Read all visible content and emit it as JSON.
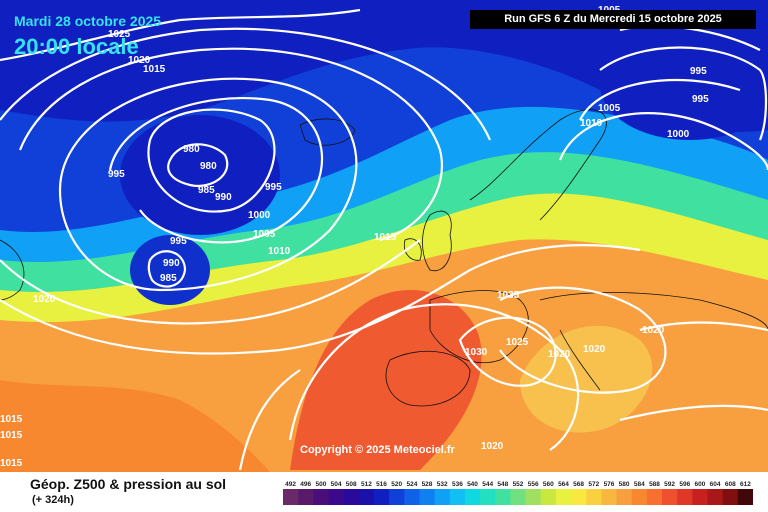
{
  "header": {
    "date": "Mardi 28 octobre 2025",
    "time": "20:00 locale",
    "run": "Run GFS 6 Z du Mercredi 15 octobre 2025",
    "copyright": "Copyright © 2025 Meteociel.fr"
  },
  "footer": {
    "title": "Géop. Z500 & pression au sol",
    "subtitle": "(+ 324h)"
  },
  "isobar_labels": [
    "1025",
    "1020",
    "1015",
    "995",
    "980",
    "980",
    "985",
    "990",
    "995",
    "1000",
    "1005",
    "1010",
    "995",
    "990",
    "985",
    "1020",
    "1015",
    "1015",
    "1015",
    "1035",
    "1025",
    "1030",
    "1020",
    "1020",
    "1020",
    "1020",
    "1005",
    "1010",
    "1000",
    "995",
    "995",
    "1005",
    "1015"
  ],
  "legend": {
    "values": [
      "492",
      "496",
      "500",
      "504",
      "508",
      "512",
      "516",
      "520",
      "524",
      "528",
      "532",
      "536",
      "540",
      "544",
      "548",
      "552",
      "556",
      "560",
      "564",
      "568",
      "572",
      "576",
      "580",
      "584",
      "588",
      "592",
      "596",
      "600",
      "604",
      "608",
      "612"
    ],
    "colors": [
      "#6a2a6a",
      "#5a1a6a",
      "#4a0e7a",
      "#3a0a8a",
      "#2a0a9a",
      "#1a10aa",
      "#1020c0",
      "#1040d8",
      "#1060e8",
      "#1080f0",
      "#10a0f5",
      "#10c0f5",
      "#10d8e0",
      "#20e0c0",
      "#40e0a0",
      "#70e080",
      "#a0e060",
      "#c8e840",
      "#e8f040",
      "#f8e840",
      "#f8d040",
      "#f8b840",
      "#f8a040",
      "#f88830",
      "#f87030",
      "#f05030",
      "#e03828",
      "#c82020",
      "#a81818",
      "#801010",
      "#400808"
    ]
  }
}
